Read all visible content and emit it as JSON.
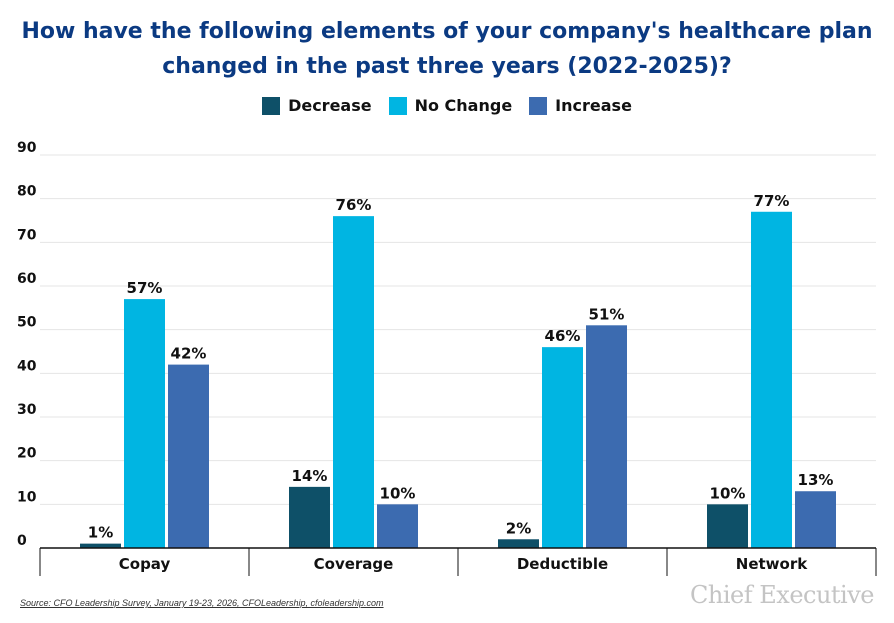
{
  "title_line1": "How have the following elements of your company's healthcare plan",
  "title_line2": "changed in the past three years (2022-2025)?",
  "source": "Source: CFO Leadership Survey, January 19-23, 2026, CFOLeadership, cfoleadership.com",
  "brand": "Chief Executive",
  "chart_data": {
    "type": "bar",
    "title": "How have the following elements of your company's healthcare plan changed in the past three years (2022-2025)?",
    "categories": [
      "Copay",
      "Coverage",
      "Deductible",
      "Network"
    ],
    "series": [
      {
        "name": "Decrease",
        "values": [
          1,
          14,
          2,
          10
        ],
        "color": "#0e5068"
      },
      {
        "name": "No Change",
        "values": [
          57,
          76,
          46,
          77
        ],
        "color": "#00b5e2"
      },
      {
        "name": "Increase",
        "values": [
          42,
          10,
          51,
          13
        ],
        "color": "#3c6bb0"
      }
    ],
    "value_labels": [
      [
        "1%",
        "57%",
        "42%"
      ],
      [
        "14%",
        "76%",
        "10%"
      ],
      [
        "2%",
        "46%",
        "51%"
      ],
      [
        "10%",
        "77%",
        "13%"
      ]
    ],
    "yticks": [
      "0",
      "10",
      "20",
      "30",
      "40",
      "50",
      "60",
      "70",
      "80",
      "90"
    ],
    "ylim": [
      0,
      90
    ],
    "xlabel": "",
    "ylabel": "",
    "grid": true,
    "legend_position": "top-center"
  }
}
